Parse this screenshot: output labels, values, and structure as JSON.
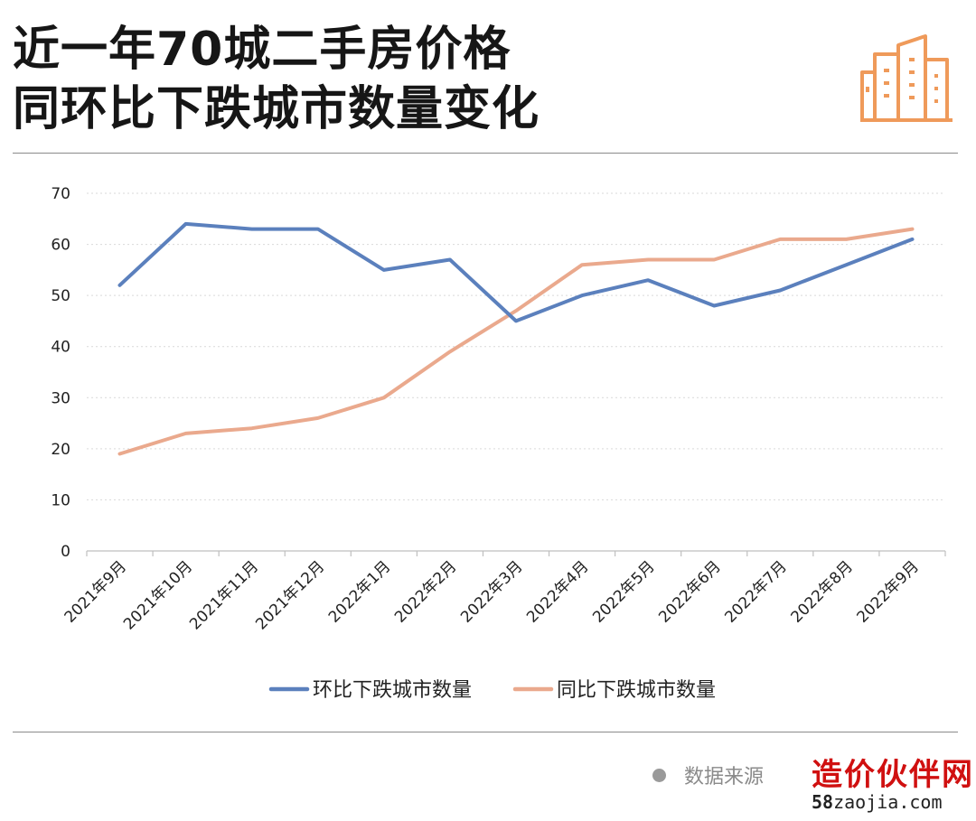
{
  "header": {
    "title_line1": "近一年70城二手房价格",
    "title_line2": "同环比下跌城市数量变化"
  },
  "footer": {
    "source_label": "数据来源",
    "watermark_text": "造价伙伴网",
    "watermark_url_bold": "58",
    "watermark_url_rest": "zaojia.com"
  },
  "colors": {
    "mom": "#5b80bd",
    "yoy": "#eaa98d",
    "logo": "#ef9a5a"
  },
  "icons": [
    "buildings-icon"
  ],
  "chart_data": {
    "type": "line",
    "title": "近一年70城二手房价格同环比下跌城市数量变化",
    "categories": [
      "2021年9月",
      "2021年10月",
      "2021年11月",
      "2021年12月",
      "2022年1月",
      "2022年2月",
      "2022年3月",
      "2022年4月",
      "2022年5月",
      "2022年6月",
      "2022年7月",
      "2022年8月",
      "2022年9月"
    ],
    "series": [
      {
        "name": "环比下跌城市数量",
        "color": "#5b80bd",
        "values": [
          52,
          64,
          63,
          63,
          55,
          57,
          45,
          50,
          53,
          48,
          51,
          56,
          61
        ]
      },
      {
        "name": "同比下跌城市数量",
        "color": "#eaa98d",
        "values": [
          19,
          23,
          24,
          26,
          30,
          39,
          47,
          56,
          57,
          57,
          61,
          61,
          63
        ]
      }
    ],
    "ylim": [
      0,
      70
    ],
    "yticks": [
      "0",
      "10",
      "20",
      "30",
      "40",
      "50",
      "60",
      "70"
    ],
    "grid": true,
    "legend_position": "bottom"
  }
}
